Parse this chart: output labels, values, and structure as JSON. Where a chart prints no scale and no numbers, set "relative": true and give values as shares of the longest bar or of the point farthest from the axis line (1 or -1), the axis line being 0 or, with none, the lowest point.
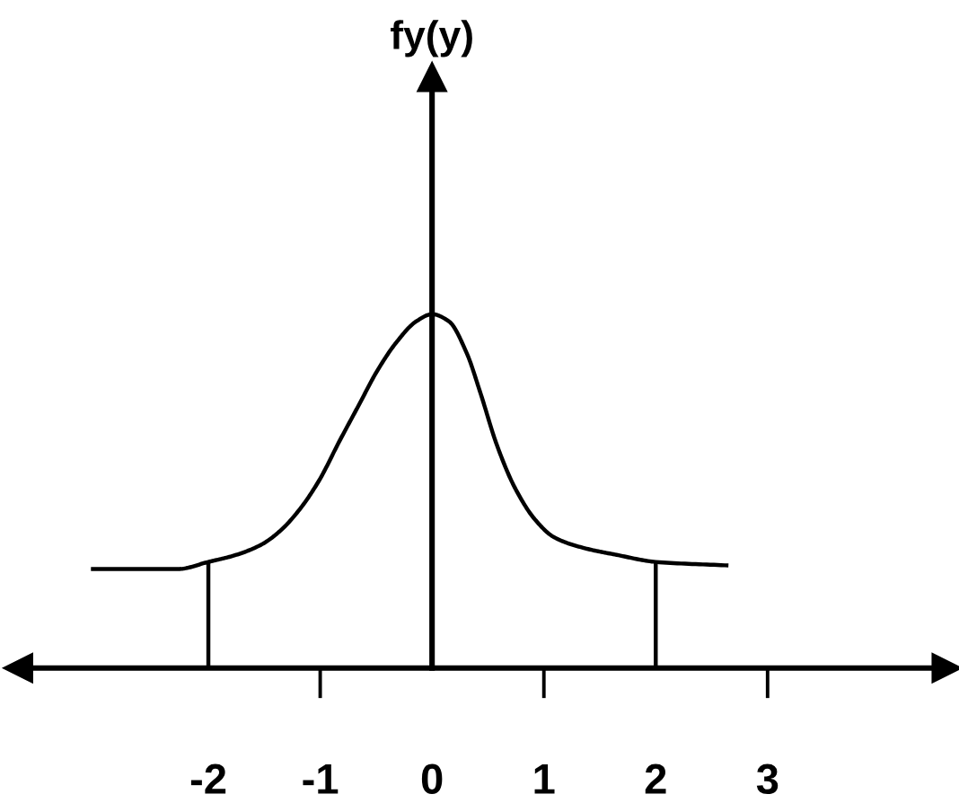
{
  "chart_data": {
    "type": "line",
    "annotations": [
      "fy(y)"
    ],
    "relative": true,
    "xlim": [
      -3.7,
      4.6
    ],
    "xticks": [
      -2,
      -1,
      0,
      1,
      2,
      3
    ],
    "series": [
      {
        "color": "#000000",
        "x": [
          -3.05,
          -2.62,
          -2.27,
          -2.0,
          -1.75,
          -1.52,
          -1.35,
          -1.18,
          -1.01,
          -0.83,
          -0.66,
          -0.49,
          -0.32,
          -0.14,
          0,
          0.15,
          0.31,
          0.43,
          0.58,
          0.74,
          0.92,
          1.09,
          1.35,
          1.65,
          2.0,
          2.65
        ],
        "values": [
          0.28,
          0.28,
          0.28,
          0.3,
          0.32,
          0.35,
          0.39,
          0.45,
          0.53,
          0.64,
          0.74,
          0.84,
          0.92,
          0.98,
          1,
          0.98,
          0.89,
          0.78,
          0.63,
          0.51,
          0.42,
          0.37,
          0.34,
          0.32,
          0.3,
          0.29
        ]
      },
      {
        "color": "#000000",
        "x": [
          -2,
          -2
        ],
        "values": [
          0,
          0.3
        ]
      },
      {
        "color": "#000000",
        "x": [
          2,
          2
        ],
        "values": [
          0,
          0.3
        ]
      }
    ]
  }
}
